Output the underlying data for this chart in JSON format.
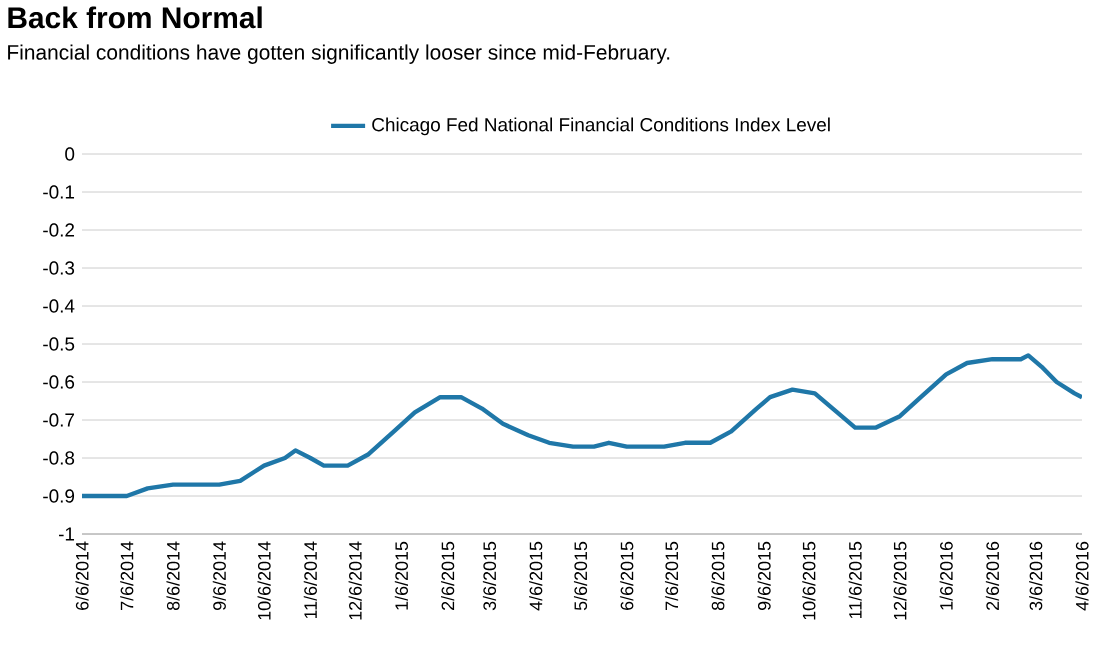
{
  "chart_data": {
    "type": "line",
    "title": "Back from Normal",
    "subtitle": "Financial conditions have gotten significantly looser since mid-February.",
    "x": [
      "2014-06-06",
      "2014-07-06",
      "2014-07-20",
      "2014-08-06",
      "2014-09-06",
      "2014-09-20",
      "2014-10-06",
      "2014-10-20",
      "2014-10-27",
      "2014-11-06",
      "2014-11-15",
      "2014-12-01",
      "2014-12-15",
      "2015-01-01",
      "2015-01-15",
      "2015-02-01",
      "2015-02-15",
      "2015-03-01",
      "2015-03-15",
      "2015-04-01",
      "2015-04-15",
      "2015-05-01",
      "2015-05-15",
      "2015-05-25",
      "2015-06-06",
      "2015-07-01",
      "2015-07-15",
      "2015-08-01",
      "2015-08-15",
      "2015-09-01",
      "2015-09-10",
      "2015-09-25",
      "2015-10-10",
      "2015-10-25",
      "2015-11-06",
      "2015-11-20",
      "2015-12-06",
      "2015-12-20",
      "2016-01-06",
      "2016-01-20",
      "2016-02-06",
      "2016-02-25",
      "2016-03-01",
      "2016-03-10",
      "2016-03-20",
      "2016-04-01",
      "2016-04-06"
    ],
    "series": [
      {
        "name": "Chicago Fed National Financial Conditions Index Level",
        "color": "#1f77a8",
        "values": [
          -0.9,
          -0.9,
          -0.88,
          -0.87,
          -0.87,
          -0.86,
          -0.82,
          -0.8,
          -0.78,
          -0.8,
          -0.82,
          -0.82,
          -0.79,
          -0.73,
          -0.68,
          -0.64,
          -0.64,
          -0.67,
          -0.71,
          -0.74,
          -0.76,
          -0.77,
          -0.77,
          -0.76,
          -0.77,
          -0.77,
          -0.76,
          -0.76,
          -0.73,
          -0.67,
          -0.64,
          -0.62,
          -0.63,
          -0.68,
          -0.72,
          -0.72,
          -0.69,
          -0.64,
          -0.58,
          -0.55,
          -0.54,
          -0.54,
          -0.53,
          -0.56,
          -0.6,
          -0.63,
          -0.64
        ]
      }
    ],
    "xlim": [
      "2014-06-06",
      "2016-04-06"
    ],
    "xticks": [
      {
        "value": "2014-06-06",
        "label": "6/6/2014"
      },
      {
        "value": "2014-07-06",
        "label": "7/6/2014"
      },
      {
        "value": "2014-08-06",
        "label": "8/6/2014"
      },
      {
        "value": "2014-09-06",
        "label": "9/6/2014"
      },
      {
        "value": "2014-10-06",
        "label": "10/6/2014"
      },
      {
        "value": "2014-11-06",
        "label": "11/6/2014"
      },
      {
        "value": "2014-12-06",
        "label": "12/6/2014"
      },
      {
        "value": "2015-01-06",
        "label": "1/6/2015"
      },
      {
        "value": "2015-02-06",
        "label": "2/6/2015"
      },
      {
        "value": "2015-03-06",
        "label": "3/6/2015"
      },
      {
        "value": "2015-04-06",
        "label": "4/6/2015"
      },
      {
        "value": "2015-05-06",
        "label": "5/6/2015"
      },
      {
        "value": "2015-06-06",
        "label": "6/6/2015"
      },
      {
        "value": "2015-07-06",
        "label": "7/6/2015"
      },
      {
        "value": "2015-08-06",
        "label": "8/6/2015"
      },
      {
        "value": "2015-09-06",
        "label": "9/6/2015"
      },
      {
        "value": "2015-10-06",
        "label": "10/6/2015"
      },
      {
        "value": "2015-11-06",
        "label": "11/6/2015"
      },
      {
        "value": "2015-12-06",
        "label": "12/6/2015"
      },
      {
        "value": "2016-01-06",
        "label": "1/6/2016"
      },
      {
        "value": "2016-02-06",
        "label": "2/6/2016"
      },
      {
        "value": "2016-03-06",
        "label": "3/6/2016"
      },
      {
        "value": "2016-04-06",
        "label": "4/6/2016"
      }
    ],
    "ylim": [
      -1,
      0
    ],
    "yticks": [
      -1,
      -0.9,
      -0.8,
      -0.7,
      -0.6,
      -0.5,
      -0.4,
      -0.3,
      -0.2,
      -0.1,
      0
    ],
    "grid": "y",
    "legend": "top",
    "marker": "none",
    "line_style": "solid"
  }
}
